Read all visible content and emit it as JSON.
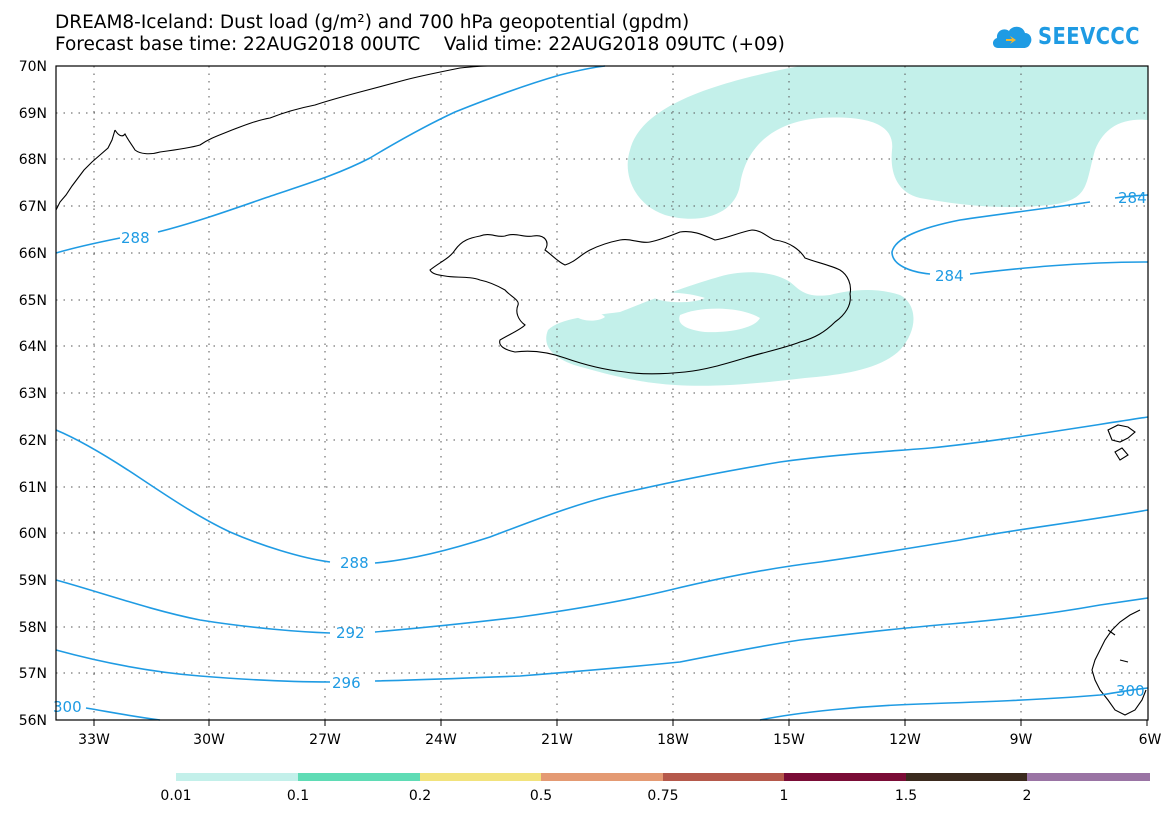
{
  "title_line1": "DREAM8-Iceland: Dust load (g/m²) and 700 hPa geopotential (gpdm)",
  "title_line2": "Forecast base time: 22AUG2018 00UTC    Valid time: 22AUG2018 09UTC (+09)",
  "logo_text": "SEEVCCC",
  "axes": {
    "lat_labels": [
      "70N",
      "69N",
      "68N",
      "67N",
      "66N",
      "65N",
      "64N",
      "63N",
      "62N",
      "61N",
      "60N",
      "59N",
      "58N",
      "57N",
      "56N"
    ],
    "lon_labels": [
      "33W",
      "30W",
      "27W",
      "24W",
      "21W",
      "18W",
      "15W",
      "12W",
      "9W",
      "6W"
    ]
  },
  "contour_labels": [
    "288",
    "288",
    "292",
    "296",
    "300",
    "284",
    "284",
    "300"
  ],
  "colorbar": {
    "labels": [
      "0.01",
      "0.1",
      "0.2",
      "0.5",
      "0.75",
      "1",
      "1.5",
      "2"
    ],
    "colors": [
      "#c3f0ea",
      "#5fdcb5",
      "#f2e37c",
      "#e49a73",
      "#b5594b",
      "#7a0c36",
      "#3b2a1e",
      "#9a74a4"
    ]
  },
  "colors": {
    "contour": "#1f9be3",
    "dust_low": "#c3f0ea"
  }
}
